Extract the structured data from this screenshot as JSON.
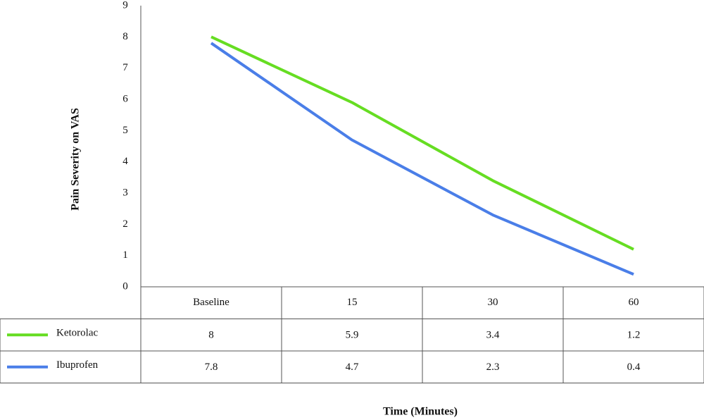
{
  "chart_data": {
    "type": "line",
    "x_label": "Time (Minutes)",
    "y_label": "Pain Severity on VAS",
    "categories": [
      "Baseline",
      "15",
      "30",
      "60"
    ],
    "series": [
      {
        "name": "Ketorolac",
        "color": "#66dd22",
        "values": [
          8,
          5.9,
          3.4,
          1.2
        ]
      },
      {
        "name": "Ibuprofen",
        "color": "#4a7ee8",
        "values": [
          7.8,
          4.7,
          2.3,
          0.4
        ]
      }
    ],
    "ylim": [
      0,
      9
    ],
    "yticks": [
      0,
      1,
      2,
      3,
      4,
      5,
      6,
      7,
      8,
      9
    ],
    "grid": false
  }
}
